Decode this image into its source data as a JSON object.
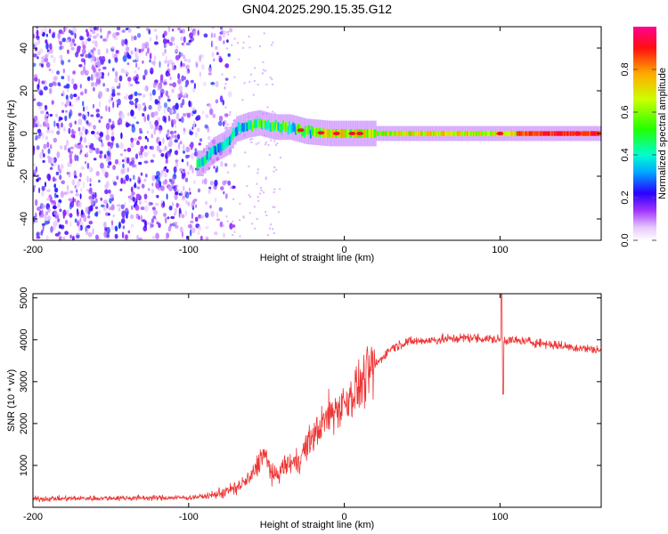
{
  "title": "GN04.2025.290.15.35.G12",
  "chart_data": [
    {
      "type": "heatmap",
      "name": "spectrogram",
      "xlabel": "Height of straight line (km)",
      "ylabel": "Frequency (Hz)",
      "xlim": [
        -200,
        165
      ],
      "ylim": [
        -50,
        50
      ],
      "xticks": [
        -200,
        -100,
        0,
        100
      ],
      "yticks": [
        -40,
        -20,
        0,
        20,
        40
      ],
      "colorbar": {
        "label": "Normalized spectral amplitude",
        "range": [
          0,
          1
        ],
        "ticks": [
          0.0,
          0.2,
          0.4,
          0.6,
          0.8
        ],
        "tick_labels": [
          "0.0",
          "0.2",
          "0.4",
          "0.6",
          "0.8"
        ]
      },
      "ridge_frequency_hz": [
        {
          "x": -92,
          "y": -14
        },
        {
          "x": -85,
          "y": -8
        },
        {
          "x": -75,
          "y": -4
        },
        {
          "x": -70,
          "y": 2
        },
        {
          "x": -62,
          "y": 4
        },
        {
          "x": -55,
          "y": 5
        },
        {
          "x": -45,
          "y": 3
        },
        {
          "x": -35,
          "y": 3
        },
        {
          "x": -25,
          "y": 1
        },
        {
          "x": -10,
          "y": 0
        },
        {
          "x": 20,
          "y": 0
        },
        {
          "x": 165,
          "y": 0
        }
      ]
    },
    {
      "type": "line",
      "name": "snr",
      "xlabel": "Height of straight line (km)",
      "ylabel": "SNR (10 * v/v)",
      "xlim": [
        -200,
        165
      ],
      "ylim": [
        0,
        5100
      ],
      "xticks": [
        -200,
        -100,
        0,
        100
      ],
      "yticks": [
        1000,
        2000,
        3000,
        4000,
        5000
      ],
      "color": "#ee3333",
      "trend": [
        {
          "x": -200,
          "y": 200
        },
        {
          "x": -150,
          "y": 220
        },
        {
          "x": -100,
          "y": 230
        },
        {
          "x": -85,
          "y": 280
        },
        {
          "x": -70,
          "y": 450
        },
        {
          "x": -60,
          "y": 700
        },
        {
          "x": -52,
          "y": 1300
        },
        {
          "x": -45,
          "y": 700
        },
        {
          "x": -38,
          "y": 1000
        },
        {
          "x": -30,
          "y": 1100
        },
        {
          "x": -20,
          "y": 1700
        },
        {
          "x": -10,
          "y": 2200
        },
        {
          "x": 0,
          "y": 2500
        },
        {
          "x": 10,
          "y": 2900
        },
        {
          "x": 20,
          "y": 3400
        },
        {
          "x": 30,
          "y": 3800
        },
        {
          "x": 40,
          "y": 3950
        },
        {
          "x": 60,
          "y": 4000
        },
        {
          "x": 80,
          "y": 4050
        },
        {
          "x": 100,
          "y": 4000
        },
        {
          "x": 120,
          "y": 3950
        },
        {
          "x": 140,
          "y": 3850
        },
        {
          "x": 165,
          "y": 3750
        }
      ],
      "spikes": [
        {
          "x": 101,
          "y": 5100
        },
        {
          "x": 102,
          "y": 2700
        }
      ]
    }
  ]
}
